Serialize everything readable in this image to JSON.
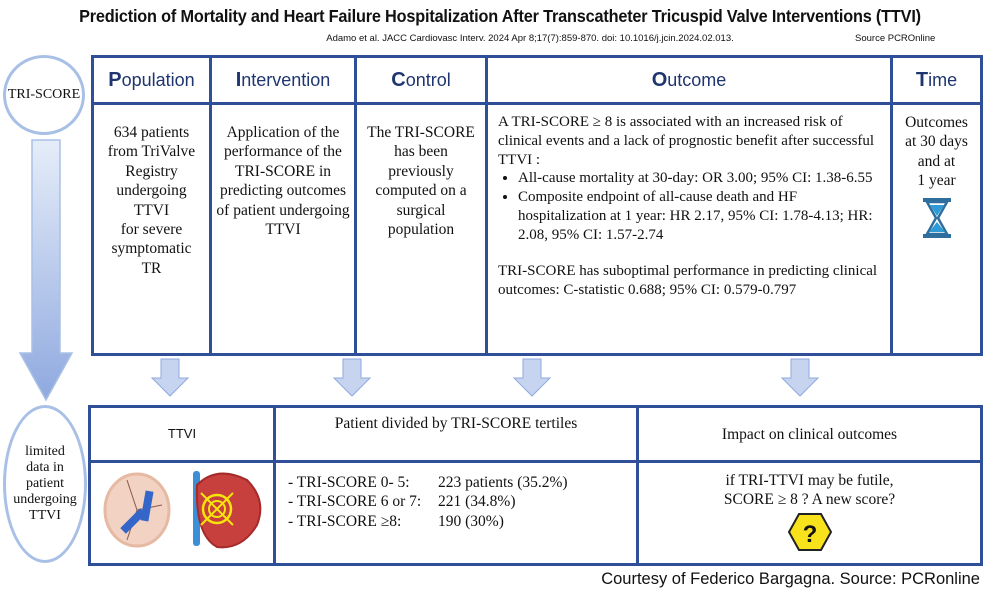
{
  "title": "Prediction of Mortality and Heart Failure Hospitalization After Transcatheter Tricuspid Valve Interventions (TTVI)",
  "citation": "Adamo et al. JACC Cardiovasc Interv. 2024 Apr 8;17(7):859-870.  doi: 10.1016/j.jcin.2024.02.013.",
  "source": "Source PCROnline",
  "left_top_ellipse": "TRI-SCORE",
  "left_bottom_ellipse": [
    "limited",
    "data in",
    "patient",
    "undergoing",
    "TTVI"
  ],
  "pico": {
    "headers": [
      {
        "initial": "P",
        "rest": "opulation"
      },
      {
        "initial": "I",
        "rest": "ntervention"
      },
      {
        "initial": "C",
        "rest": "ontrol"
      },
      {
        "initial": "O",
        "rest": "utcome"
      },
      {
        "initial": "T",
        "rest": "ime"
      }
    ],
    "population": [
      "634 patients",
      "from TriValve",
      "Registry",
      "undergoing",
      "TTVI",
      "for severe",
      "symptomatic",
      "TR"
    ],
    "intervention": "Application of the performance of the TRI-SCORE in predicting outcomes of patient undergoing TTVI",
    "control": "The TRI-SCORE has been previously computed on a surgical population",
    "outcome": {
      "intro": "A TRI-SCORE ≥ 8 is associated with an increased risk of clinical events and a lack of prognostic benefit after successful TTVI :",
      "bullets": [
        "All-cause mortality at 30-day: OR 3.00; 95% CI: 1.38-6.55",
        "Composite endpoint of all-cause death and HF hospitalization at 1 year: HR 2.17, 95% CI: 1.78-4.13; HR: 2.08, 95% CI: 1.57-2.74"
      ],
      "conclusion": "TRI-SCORE has suboptimal performance in predicting clinical outcomes: C-statistic 0.688; 95% CI: 0.579-0.797"
    },
    "time": [
      "Outcomes",
      "at 30 days",
      "and at",
      "1 year"
    ]
  },
  "bottom": {
    "headers": [
      "TTVI",
      "Patient divided by TRI-SCORE tertiles",
      "Impact on clinical outcomes"
    ],
    "tertiles": [
      {
        "label": "- TRI-SCORE 0- 5:",
        "value": "223 patients (35.2%)"
      },
      {
        "label": "- TRI-SCORE 6 or 7:",
        "value": "221 (34.8%)"
      },
      {
        "label": "- TRI-SCORE ≥8:",
        "value": "190 (30%)"
      }
    ],
    "impact": [
      "if TRI-TTVI may be futile,",
      "SCORE ≥ 8 ? A new score?"
    ],
    "question_mark": "?"
  },
  "courtesy": "Courtesy of Federico Bargagna. Source: PCRonline",
  "colors": {
    "border": "#2f4f98",
    "ellipse": "#a9c0e6",
    "arrow": "#a9c0e6",
    "hourglass": "#2e9bd6",
    "warning": "#f7e21b"
  }
}
